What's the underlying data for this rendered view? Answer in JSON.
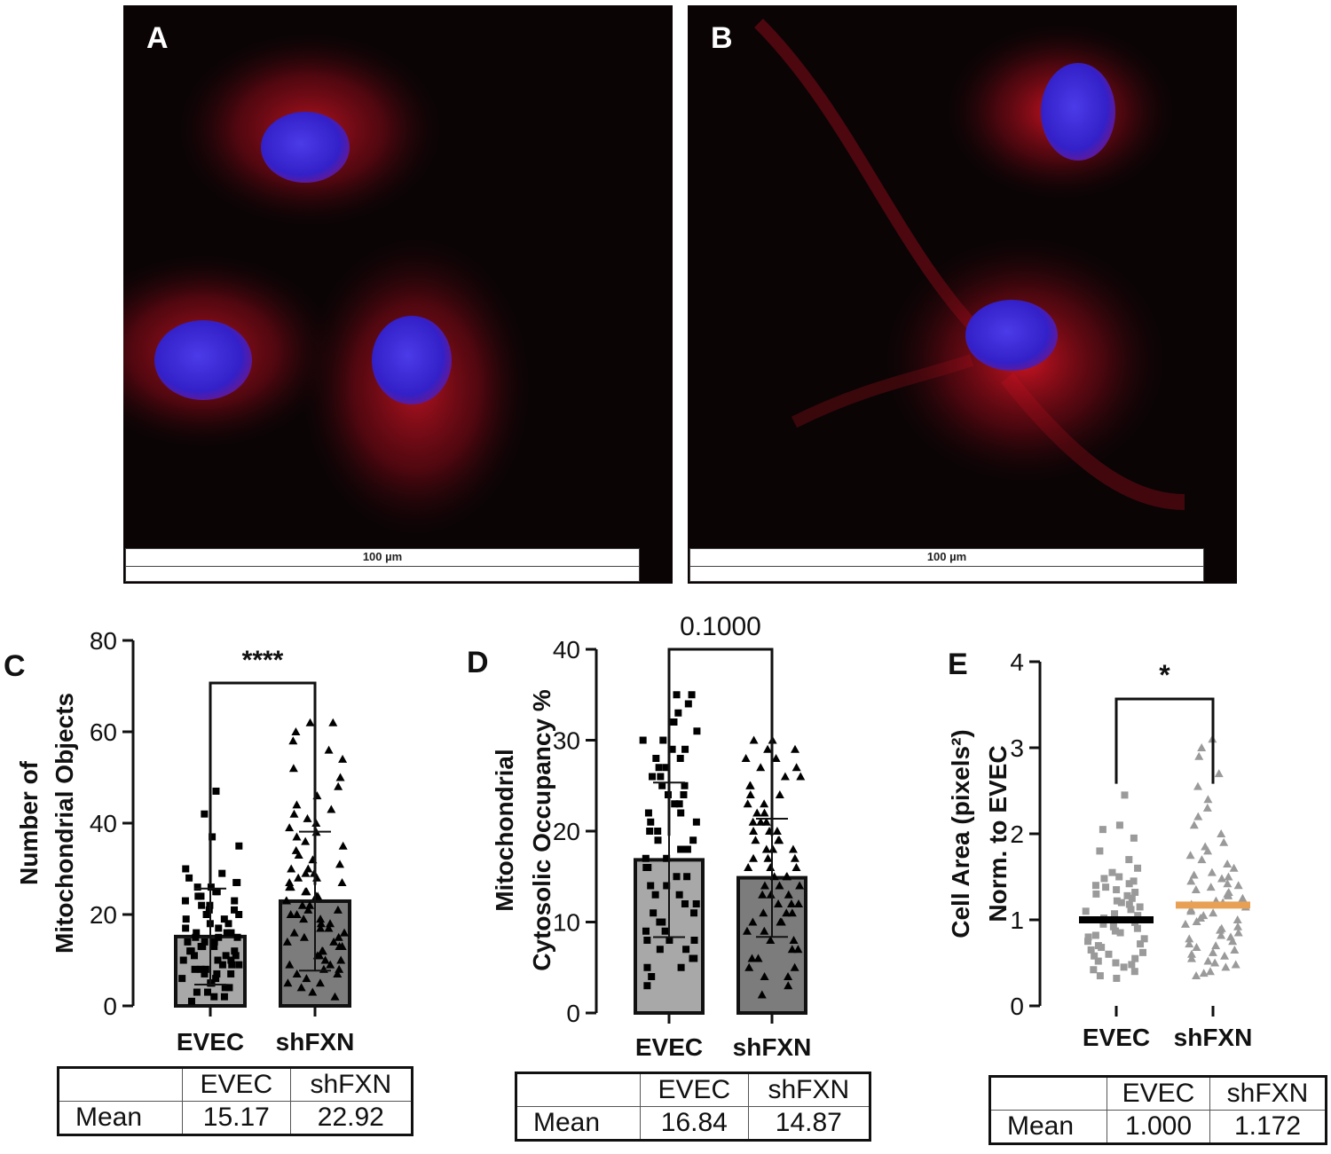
{
  "panels": {
    "a": {
      "letter": "A",
      "scale_label": "100 µm"
    },
    "b": {
      "letter": "B",
      "scale_label": "100 µm"
    }
  },
  "colors": {
    "background_dark": "#0a0405",
    "mito_red": "#e01020",
    "nucleus_blue": "#3a2ad8",
    "bar_evec": "#a8a8a8",
    "bar_shfxn": "#7c7c7c",
    "scatter_grey": "#9a9a9a",
    "mean_black": "#000000",
    "mean_orange": "#e8a055"
  },
  "chart_data": [
    {
      "panel": "C",
      "type": "bar",
      "categories": [
        "EVEC",
        "shFXN"
      ],
      "values": [
        15.17,
        22.92
      ],
      "errors": [
        10.5,
        15.2
      ],
      "markers": [
        "square",
        "triangle"
      ],
      "ylabel_lines": [
        "Number of",
        "Mitochondrial Objects"
      ],
      "yticks": [
        0,
        20,
        40,
        60,
        80
      ],
      "ylim": [
        0,
        80
      ],
      "significance": "****",
      "points": [
        [
          1,
          2,
          2,
          3,
          3,
          4,
          4,
          5,
          5,
          5,
          6,
          6,
          7,
          7,
          7,
          8,
          8,
          8,
          9,
          9,
          9,
          10,
          10,
          10,
          11,
          11,
          11,
          12,
          12,
          12,
          13,
          13,
          13,
          14,
          14,
          14,
          15,
          15,
          15,
          16,
          16,
          16,
          17,
          17,
          18,
          18,
          19,
          19,
          20,
          20,
          21,
          21,
          22,
          22,
          23,
          23,
          24,
          24,
          25,
          25,
          26,
          26,
          27,
          27,
          28,
          29,
          30,
          35,
          37,
          42,
          47
        ],
        [
          2,
          3,
          4,
          5,
          5,
          6,
          7,
          7,
          8,
          8,
          9,
          9,
          10,
          10,
          11,
          11,
          12,
          12,
          13,
          13,
          14,
          14,
          15,
          15,
          16,
          16,
          17,
          17,
          18,
          18,
          19,
          19,
          20,
          20,
          21,
          21,
          22,
          22,
          23,
          23,
          24,
          24,
          25,
          25,
          26,
          26,
          27,
          27,
          28,
          28,
          29,
          29,
          30,
          30,
          31,
          32,
          33,
          34,
          35,
          36,
          37,
          38,
          39,
          40,
          41,
          42,
          43,
          44,
          46,
          48,
          50,
          52,
          54,
          56,
          58,
          60,
          62,
          62
        ]
      ],
      "table": {
        "headers": [
          "",
          "EVEC",
          "shFXN"
        ],
        "row_label": "Mean",
        "row": [
          "15.17",
          "22.92"
        ]
      }
    },
    {
      "panel": "D",
      "type": "bar",
      "categories": [
        "EVEC",
        "shFXN"
      ],
      "values": [
        16.84,
        14.87
      ],
      "errors": [
        8.5,
        6.5
      ],
      "markers": [
        "square",
        "triangle"
      ],
      "ylabel_lines": [
        "Mitochondrial",
        "Cytosolic  Occupancy %"
      ],
      "yticks": [
        0,
        10,
        20,
        30,
        40
      ],
      "ylim": [
        0,
        40
      ],
      "significance": "0.1000",
      "points": [
        [
          3,
          4,
          5,
          5,
          6,
          6,
          7,
          7,
          8,
          8,
          8,
          9,
          9,
          10,
          10,
          11,
          11,
          12,
          12,
          13,
          13,
          14,
          14,
          15,
          15,
          16,
          16,
          17,
          17,
          18,
          18,
          19,
          19,
          20,
          20,
          21,
          21,
          22,
          22,
          23,
          23,
          24,
          24,
          25,
          25,
          26,
          26,
          27,
          27,
          28,
          28,
          29,
          29,
          30,
          30,
          31,
          32,
          33,
          34,
          35,
          35
        ],
        [
          2,
          3,
          4,
          4,
          5,
          5,
          6,
          6,
          7,
          7,
          8,
          8,
          9,
          9,
          10,
          10,
          10,
          11,
          11,
          11,
          12,
          12,
          12,
          13,
          13,
          13,
          14,
          14,
          14,
          15,
          15,
          15,
          16,
          16,
          16,
          17,
          17,
          17,
          18,
          18,
          18,
          19,
          19,
          19,
          20,
          20,
          20,
          21,
          21,
          21,
          22,
          22,
          23,
          23,
          24,
          24,
          25,
          25,
          26,
          26,
          27,
          27,
          28,
          28,
          29,
          29,
          30,
          30
        ]
      ],
      "table": {
        "headers": [
          "",
          "EVEC",
          "shFXN"
        ],
        "row_label": "Mean",
        "row": [
          "16.84",
          "14.87"
        ]
      }
    },
    {
      "panel": "E",
      "type": "scatter",
      "categories": [
        "EVEC",
        "shFXN"
      ],
      "values": [
        1.0,
        1.172
      ],
      "markers": [
        "square",
        "triangle"
      ],
      "ylabel_lines": [
        "Cell Area (pixels²)",
        "Norm. to  EVEC"
      ],
      "yticks": [
        0,
        1,
        2,
        3,
        4
      ],
      "ylim": [
        0,
        4
      ],
      "significance": "*",
      "points": [
        [
          0.32,
          0.35,
          0.4,
          0.42,
          0.45,
          0.48,
          0.5,
          0.52,
          0.55,
          0.58,
          0.6,
          0.62,
          0.65,
          0.68,
          0.7,
          0.72,
          0.75,
          0.78,
          0.8,
          0.82,
          0.85,
          0.87,
          0.9,
          0.92,
          0.95,
          0.97,
          1.0,
          1.02,
          1.05,
          1.07,
          1.1,
          1.12,
          1.15,
          1.18,
          1.2,
          1.22,
          1.25,
          1.28,
          1.3,
          1.32,
          1.35,
          1.38,
          1.4,
          1.42,
          1.45,
          1.48,
          1.5,
          1.55,
          1.6,
          1.7,
          1.8,
          1.95,
          2.05,
          2.1,
          2.45
        ],
        [
          0.35,
          0.38,
          0.4,
          0.45,
          0.48,
          0.5,
          0.52,
          0.55,
          0.58,
          0.6,
          0.62,
          0.65,
          0.68,
          0.7,
          0.72,
          0.75,
          0.78,
          0.8,
          0.82,
          0.85,
          0.88,
          0.9,
          0.92,
          0.95,
          0.98,
          1.0,
          1.02,
          1.05,
          1.08,
          1.1,
          1.12,
          1.15,
          1.18,
          1.2,
          1.22,
          1.25,
          1.28,
          1.3,
          1.32,
          1.35,
          1.38,
          1.4,
          1.42,
          1.45,
          1.48,
          1.5,
          1.52,
          1.55,
          1.6,
          1.65,
          1.7,
          1.75,
          1.8,
          1.85,
          1.9,
          2.0,
          2.1,
          2.2,
          2.3,
          2.4,
          2.55,
          2.7,
          2.9,
          3.0,
          3.1
        ]
      ],
      "table": {
        "headers": [
          "",
          "EVEC",
          "shFXN"
        ],
        "row_label": "Mean",
        "row": [
          "1.000",
          "1.172"
        ]
      }
    }
  ]
}
